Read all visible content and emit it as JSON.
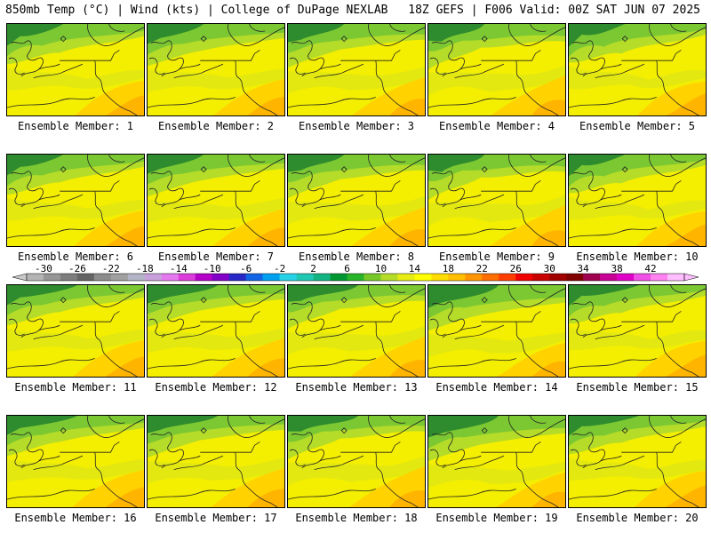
{
  "header": {
    "left": "850mb Temp (°C) | Wind (kts) | College of DuPage NEXLAB",
    "right": "18Z GEFS | F006 Valid: 00Z SAT JUN 07 2025"
  },
  "panel_label_prefix": "Ensemble Member: ",
  "members": [
    {
      "label": "Ensemble Member: 1",
      "number": 1
    },
    {
      "label": "Ensemble Member: 2",
      "number": 2
    },
    {
      "label": "Ensemble Member: 3",
      "number": 3
    },
    {
      "label": "Ensemble Member: 4",
      "number": 4
    },
    {
      "label": "Ensemble Member: 5",
      "number": 5
    },
    {
      "label": "Ensemble Member: 6",
      "number": 6
    },
    {
      "label": "Ensemble Member: 7",
      "number": 7
    },
    {
      "label": "Ensemble Member: 8",
      "number": 8
    },
    {
      "label": "Ensemble Member: 9",
      "number": 9
    },
    {
      "label": "Ensemble Member: 10",
      "number": 10
    },
    {
      "label": "Ensemble Member: 11",
      "number": 11
    },
    {
      "label": "Ensemble Member: 12",
      "number": 12
    },
    {
      "label": "Ensemble Member: 13",
      "number": 13
    },
    {
      "label": "Ensemble Member: 14",
      "number": 14
    },
    {
      "label": "Ensemble Member: 15",
      "number": 15
    },
    {
      "label": "Ensemble Member: 16",
      "number": 16
    },
    {
      "label": "Ensemble Member: 17",
      "number": 17
    },
    {
      "label": "Ensemble Member: 18",
      "number": 18
    },
    {
      "label": "Ensemble Member: 19",
      "number": 19
    },
    {
      "label": "Ensemble Member: 20",
      "number": 20
    }
  ],
  "colorbar": {
    "ticks": [
      "-30",
      "-26",
      "-22",
      "-18",
      "-14",
      "-10",
      "-6",
      "-2",
      "2",
      "6",
      "10",
      "14",
      "18",
      "22",
      "26",
      "30",
      "34",
      "38",
      "42"
    ],
    "colors": [
      "#b4b4b4",
      "#969696",
      "#7d7d7d",
      "#646464",
      "#8c8c8c",
      "#a0a0a0",
      "#b4b4c8",
      "#c8a0dc",
      "#e678f0",
      "#dc3cdc",
      "#b400c8",
      "#8200c8",
      "#2828c8",
      "#1464e6",
      "#00a0f0",
      "#28d2e6",
      "#20c8b4",
      "#14b482",
      "#009632",
      "#28b428",
      "#78c828",
      "#b4dc28",
      "#e6ec14",
      "#ffff00",
      "#ffdc00",
      "#ffbe00",
      "#ff9600",
      "#ff6e00",
      "#ff3c00",
      "#f00000",
      "#c80000",
      "#a00000",
      "#800000",
      "#a00050",
      "#c80096",
      "#e000c8",
      "#f050e6",
      "#ff82f0",
      "#ffbeff"
    ]
  },
  "map_colors": {
    "dark_green": "#2e8b2e",
    "green": "#7cc832",
    "light_green": "#b4dc28",
    "yellow_green": "#d6e61e",
    "yellow": "#f4ee00",
    "gold": "#ffd200",
    "orange": "#ffb400"
  }
}
